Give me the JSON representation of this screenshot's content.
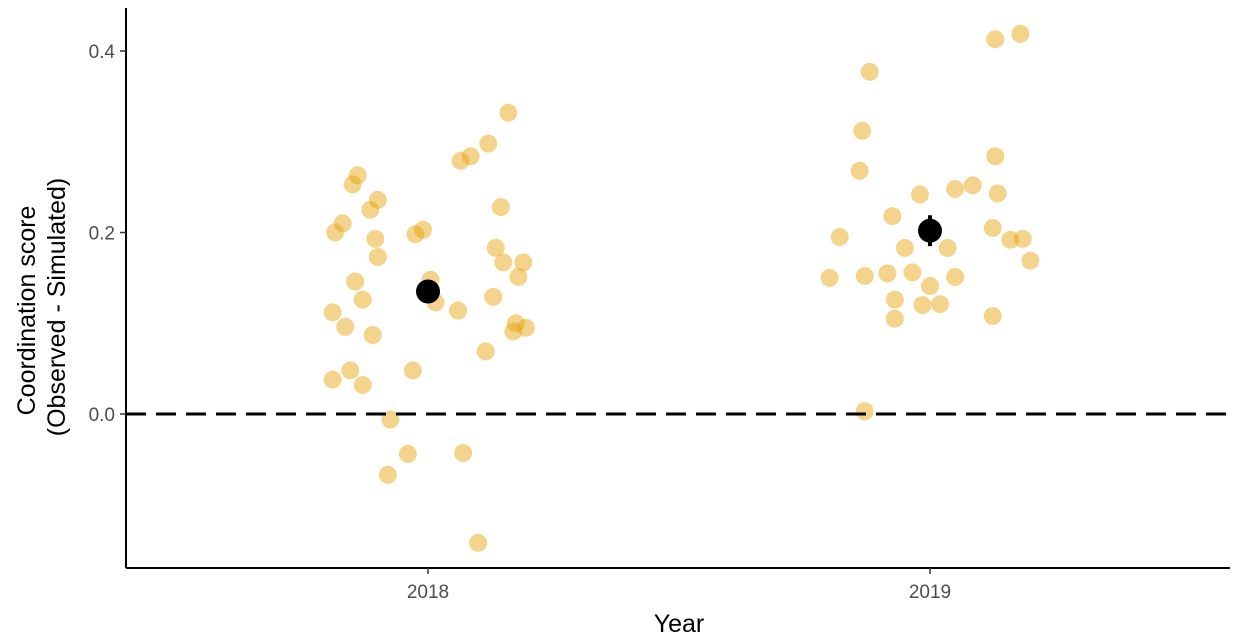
{
  "chart_data": {
    "type": "scatter",
    "title": "",
    "xlabel": "Year",
    "ylabel_lines": [
      "Coordination score",
      "(Observed - Simulated)"
    ],
    "categories": [
      "2018",
      "2019"
    ],
    "ylim": [
      -0.17,
      0.45
    ],
    "y_ticks": [
      {
        "value": 0.0,
        "label": "0.0"
      },
      {
        "value": 0.2,
        "label": "0.2"
      },
      {
        "value": 0.4,
        "label": "0.4"
      }
    ],
    "reference_line": {
      "y": 0.0,
      "style": "dashed"
    },
    "grid": false,
    "legend": "none",
    "point_color": "#E69F00",
    "summary_color": "#000000",
    "series": [
      {
        "category": "2018",
        "points": [
          {
            "x": -0.19,
            "y": 0.038
          },
          {
            "x": -0.19,
            "y": 0.112
          },
          {
            "x": -0.185,
            "y": 0.2
          },
          {
            "x": -0.17,
            "y": 0.21
          },
          {
            "x": -0.165,
            "y": 0.096
          },
          {
            "x": -0.155,
            "y": 0.048
          },
          {
            "x": -0.15,
            "y": 0.253
          },
          {
            "x": -0.145,
            "y": 0.146
          },
          {
            "x": -0.14,
            "y": 0.263
          },
          {
            "x": -0.13,
            "y": 0.032
          },
          {
            "x": -0.13,
            "y": 0.126
          },
          {
            "x": -0.115,
            "y": 0.225
          },
          {
            "x": -0.11,
            "y": 0.087
          },
          {
            "x": -0.105,
            "y": 0.193
          },
          {
            "x": -0.1,
            "y": 0.236
          },
          {
            "x": -0.1,
            "y": 0.173
          },
          {
            "x": -0.08,
            "y": -0.067
          },
          {
            "x": -0.075,
            "y": -0.006
          },
          {
            "x": -0.04,
            "y": -0.044
          },
          {
            "x": -0.03,
            "y": 0.048
          },
          {
            "x": -0.025,
            "y": 0.198
          },
          {
            "x": -0.01,
            "y": 0.203
          },
          {
            "x": 0.005,
            "y": 0.148
          },
          {
            "x": 0.015,
            "y": 0.123
          },
          {
            "x": 0.06,
            "y": 0.114
          },
          {
            "x": 0.065,
            "y": 0.279
          },
          {
            "x": 0.07,
            "y": -0.043
          },
          {
            "x": 0.085,
            "y": 0.284
          },
          {
            "x": 0.1,
            "y": -0.142
          },
          {
            "x": 0.115,
            "y": 0.069
          },
          {
            "x": 0.12,
            "y": 0.298
          },
          {
            "x": 0.13,
            "y": 0.129
          },
          {
            "x": 0.135,
            "y": 0.183
          },
          {
            "x": 0.145,
            "y": 0.228
          },
          {
            "x": 0.15,
            "y": 0.167
          },
          {
            "x": 0.16,
            "y": 0.332
          },
          {
            "x": 0.17,
            "y": 0.091
          },
          {
            "x": 0.175,
            "y": 0.1
          },
          {
            "x": 0.18,
            "y": 0.151
          },
          {
            "x": 0.19,
            "y": 0.167
          },
          {
            "x": 0.195,
            "y": 0.095
          }
        ],
        "mean": 0.135,
        "error": [
          0.123,
          0.147
        ]
      },
      {
        "category": "2019",
        "points": [
          {
            "x": -0.2,
            "y": 0.15
          },
          {
            "x": -0.18,
            "y": 0.195
          },
          {
            "x": -0.14,
            "y": 0.268
          },
          {
            "x": -0.135,
            "y": 0.312
          },
          {
            "x": -0.13,
            "y": 0.003
          },
          {
            "x": -0.13,
            "y": 0.152
          },
          {
            "x": -0.12,
            "y": 0.377
          },
          {
            "x": -0.085,
            "y": 0.155
          },
          {
            "x": -0.075,
            "y": 0.218
          },
          {
            "x": -0.07,
            "y": 0.126
          },
          {
            "x": -0.07,
            "y": 0.105
          },
          {
            "x": -0.05,
            "y": 0.183
          },
          {
            "x": -0.035,
            "y": 0.156
          },
          {
            "x": -0.02,
            "y": 0.242
          },
          {
            "x": -0.015,
            "y": 0.12
          },
          {
            "x": 0.0,
            "y": 0.141
          },
          {
            "x": 0.02,
            "y": 0.121
          },
          {
            "x": 0.035,
            "y": 0.183
          },
          {
            "x": 0.05,
            "y": 0.151
          },
          {
            "x": 0.05,
            "y": 0.248
          },
          {
            "x": 0.085,
            "y": 0.252
          },
          {
            "x": 0.125,
            "y": 0.108
          },
          {
            "x": 0.125,
            "y": 0.205
          },
          {
            "x": 0.13,
            "y": 0.284
          },
          {
            "x": 0.13,
            "y": 0.413
          },
          {
            "x": 0.135,
            "y": 0.243
          },
          {
            "x": 0.16,
            "y": 0.192
          },
          {
            "x": 0.18,
            "y": 0.419
          },
          {
            "x": 0.185,
            "y": 0.193
          },
          {
            "x": 0.2,
            "y": 0.169
          }
        ],
        "mean": 0.202,
        "error": [
          0.185,
          0.219
        ]
      }
    ]
  }
}
